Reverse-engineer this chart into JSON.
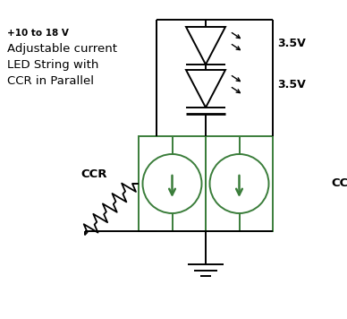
{
  "bg_color": "#ffffff",
  "line_color": "#000000",
  "green_color": "#3a7d3a",
  "text_voltage_top": "+10 to 18 V",
  "text_label": "Adjustable current\nLED String with\nCCR in Parallel",
  "text_35v_1": "3.5V",
  "text_35v_2": "3.5V",
  "text_ccr_left": "CCR",
  "text_ccr_right": "CCR",
  "figsize": [
    3.88,
    3.56
  ],
  "dpi": 100
}
